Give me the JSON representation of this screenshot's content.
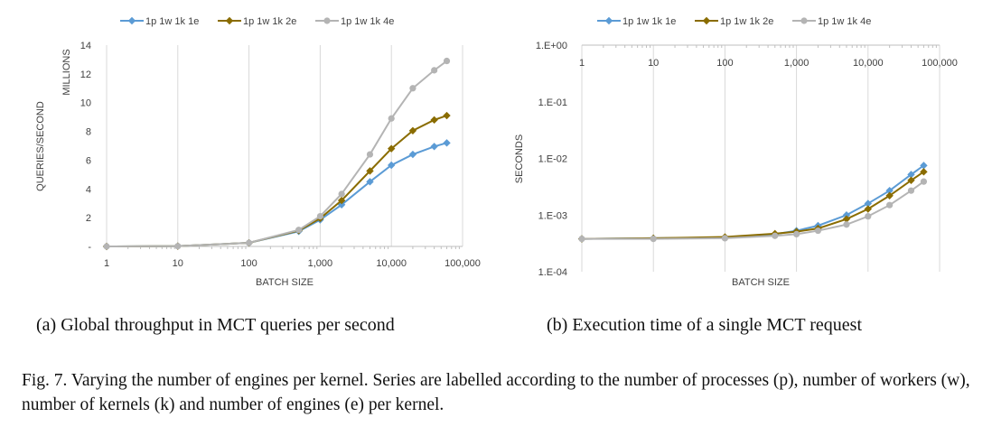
{
  "chart_data": [
    {
      "type": "line",
      "panel_label": "(a) Global throughput in MCT queries per second",
      "xlabel": "BATCH SIZE",
      "ylabel": "QUERIES/SECOND",
      "yunit_label": "MILLIONS",
      "xscale": "log",
      "xlim": [
        1,
        100000
      ],
      "ylim": [
        0,
        14
      ],
      "x_ticks": [
        "1",
        "10",
        "100",
        "1,000",
        "10,000",
        "100,000"
      ],
      "y_ticks": [
        "-",
        "2",
        "4",
        "6",
        "8",
        "10",
        "12",
        "14"
      ],
      "grid": "vertical",
      "legend_position": "top",
      "x": [
        1,
        10,
        100,
        500,
        1000,
        2000,
        5000,
        10000,
        20000,
        40000,
        60000
      ],
      "series": [
        {
          "name": "1p 1w 1k 1e",
          "color": "#5b9bd5",
          "marker": "diamond",
          "values": [
            0,
            0.02,
            0.25,
            1.05,
            1.85,
            2.9,
            4.5,
            5.65,
            6.4,
            6.95,
            7.2
          ]
        },
        {
          "name": "1p 1w 1k 2e",
          "color": "#8a6c00",
          "marker": "diamond",
          "values": [
            0,
            0.02,
            0.25,
            1.1,
            1.95,
            3.2,
            5.25,
            6.8,
            8.05,
            8.8,
            9.1
          ]
        },
        {
          "name": "1p 1w 1k 4e",
          "color": "#b4b4b4",
          "marker": "circle",
          "values": [
            0,
            0.02,
            0.25,
            1.15,
            2.1,
            3.65,
            6.4,
            8.9,
            11.0,
            12.25,
            12.9
          ]
        }
      ]
    },
    {
      "type": "line",
      "panel_label": "(b) Execution time of a single MCT request",
      "xlabel": "BATCH SIZE",
      "ylabel": "SECONDS",
      "xscale": "log",
      "yscale": "log",
      "xlim": [
        1,
        100000
      ],
      "ylim": [
        0.0001,
        1
      ],
      "x_ticks": [
        "1",
        "10",
        "100",
        "1,000",
        "10,000",
        "100,000"
      ],
      "x_ticks_position": "top",
      "y_ticks": [
        "1.E+00",
        "1.E-01",
        "1.E-02",
        "1.E-03",
        "1.E-04"
      ],
      "grid": "vertical",
      "legend_position": "top",
      "x": [
        1,
        10,
        100,
        500,
        1000,
        2000,
        5000,
        10000,
        20000,
        40000,
        60000
      ],
      "series": [
        {
          "name": "1p 1w 1k 1e",
          "color": "#5b9bd5",
          "marker": "diamond",
          "values": [
            0.00038,
            0.00039,
            0.0004,
            0.00046,
            0.00053,
            0.00065,
            0.001,
            0.0016,
            0.0027,
            0.0052,
            0.0075
          ]
        },
        {
          "name": "1p 1w 1k 2e",
          "color": "#8a6c00",
          "marker": "diamond",
          "values": [
            0.00038,
            0.00039,
            0.00041,
            0.00047,
            0.00051,
            0.00058,
            0.00085,
            0.00128,
            0.0022,
            0.0041,
            0.0058
          ]
        },
        {
          "name": "1p 1w 1k 4e",
          "color": "#b4b4b4",
          "marker": "circle",
          "values": [
            0.00038,
            0.00038,
            0.00039,
            0.00043,
            0.00046,
            0.00053,
            0.00068,
            0.00095,
            0.0015,
            0.0027,
            0.0039
          ]
        }
      ]
    }
  ],
  "figure_caption": "Fig. 7.  Varying the number of engines per kernel. Series are labelled according to the number of processes (p), number of workers (w), number of kernels (k) and number of engines (e) per kernel."
}
